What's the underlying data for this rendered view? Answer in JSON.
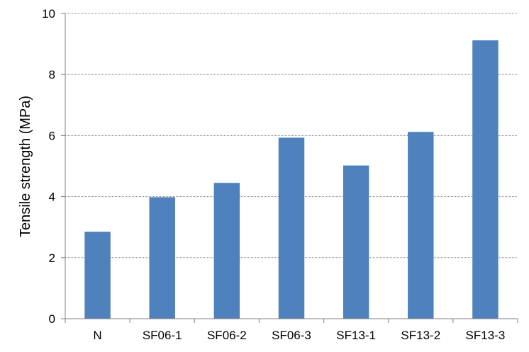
{
  "chart_data": {
    "type": "bar",
    "title": "",
    "xlabel": "",
    "ylabel": "Tensile strength  (MPa)",
    "categories": [
      "N",
      "SF06-1",
      "SF06-2",
      "SF06-3",
      "SF13-1",
      "SF13-2",
      "SF13-3"
    ],
    "values": [
      2.85,
      3.98,
      4.45,
      5.93,
      5.02,
      6.12,
      9.12
    ],
    "ylim": [
      0,
      10
    ],
    "yticks": [
      0,
      2,
      4,
      6,
      8,
      10
    ],
    "grid": true,
    "bar_color": "#4f81bd"
  }
}
